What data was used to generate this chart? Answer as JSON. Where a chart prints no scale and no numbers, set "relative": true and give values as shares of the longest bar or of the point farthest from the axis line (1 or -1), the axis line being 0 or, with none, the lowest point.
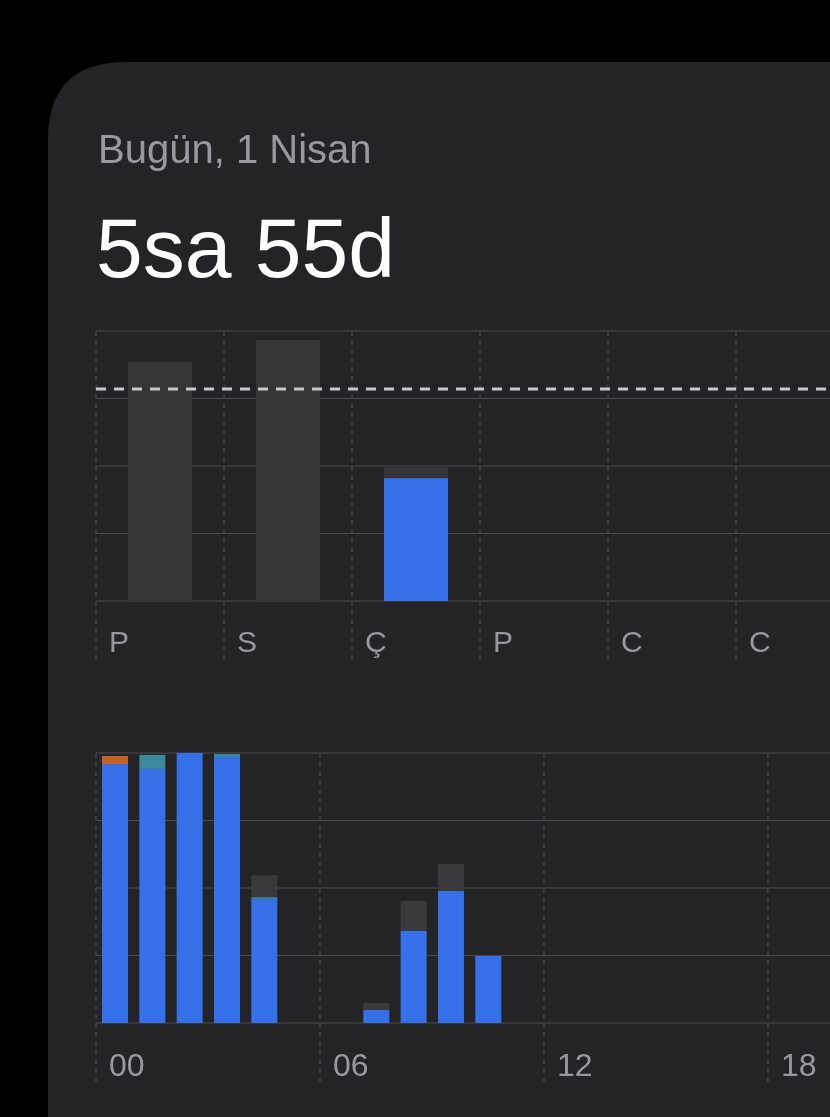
{
  "chart_data": [
    {
      "type": "bar",
      "subtitle": "Bugün, 1 Nisan",
      "title": "5sa 55d",
      "categories": [
        "P",
        "S",
        "Ç",
        "P",
        "C",
        "C"
      ],
      "stacked": true,
      "relative": true,
      "grid": true,
      "series": [
        {
          "color": "#3670e8",
          "values": [
            null,
            null,
            0.471,
            null,
            null,
            null
          ]
        },
        {
          "color": "#363638",
          "values": [
            0.916,
            1,
            0.042,
            null,
            null,
            null
          ]
        }
      ],
      "ref_lines": [
        {
          "axis": "y",
          "value": 0.812,
          "color": "#c8c8cc",
          "line_style": "dashed"
        }
      ]
    },
    {
      "type": "bar",
      "categories": [
        "00",
        null,
        null,
        null,
        null,
        null,
        "06",
        null,
        null,
        null,
        null,
        null,
        "12",
        null,
        null,
        null,
        null,
        null,
        "18",
        null
      ],
      "stacked": true,
      "relative": true,
      "grid": true,
      "series": [
        {
          "color": "#3670e8",
          "values": [
            0.959,
            0.941,
            1,
            0.985,
            0.459,
            null,
            null,
            0.048,
            0.341,
            0.489,
            0.248,
            null,
            null,
            null,
            null,
            null,
            null,
            null,
            null,
            null
          ]
        },
        {
          "color": "#c0622a",
          "values": [
            0.03,
            null,
            null,
            null,
            null,
            null,
            null,
            null,
            null,
            null,
            null,
            null,
            null,
            null,
            null,
            null,
            null,
            null,
            null,
            null
          ]
        },
        {
          "color": "#3a8a9e",
          "values": [
            null,
            0.052,
            null,
            0.011,
            0.007,
            null,
            null,
            null,
            null,
            null,
            null,
            null,
            null,
            null,
            null,
            null,
            null,
            null,
            null,
            null
          ]
        },
        {
          "color": "#3a3a3c",
          "values": [
            null,
            null,
            null,
            null,
            0.081,
            0.002,
            0.004,
            0.026,
            0.111,
            0.1,
            null,
            null,
            null,
            null,
            null,
            null,
            null,
            null,
            null,
            null
          ]
        }
      ]
    }
  ]
}
